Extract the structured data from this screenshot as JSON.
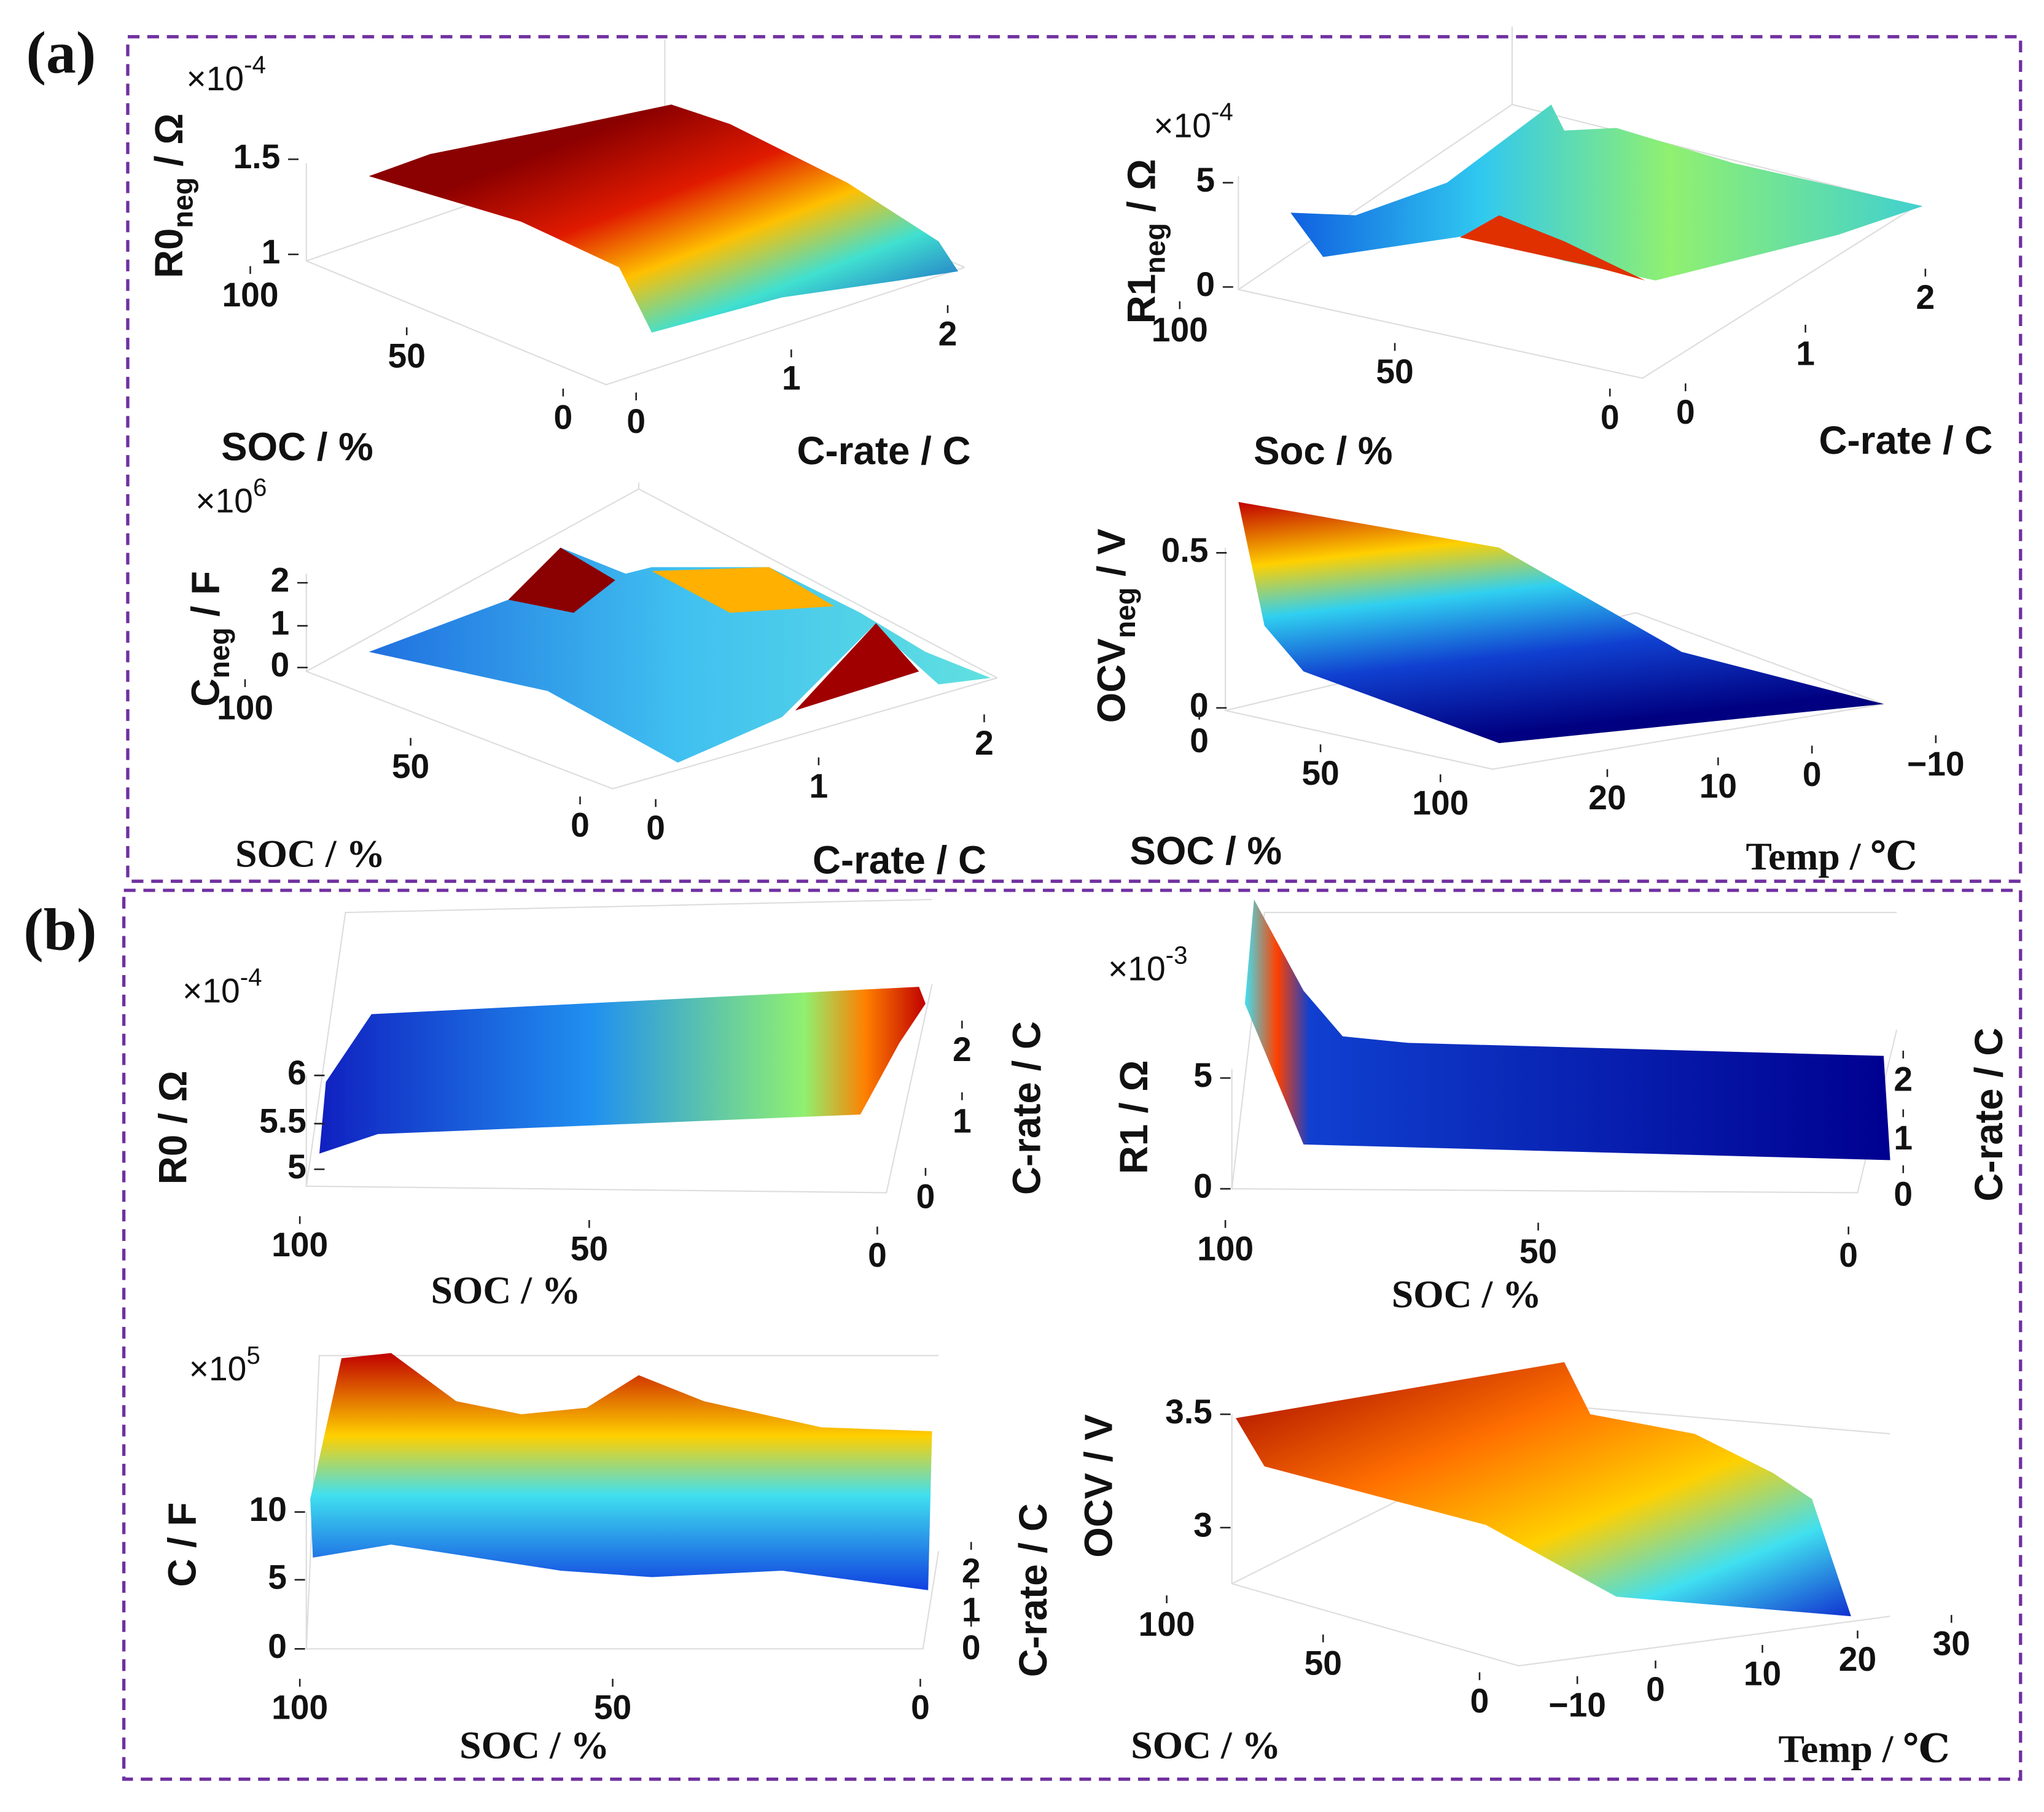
{
  "figure_labels": [
    "(a)",
    "(b)"
  ],
  "chart_data": [
    {
      "type": "surface",
      "multiplier": {
        "base": "×10",
        "exp": "-4"
      },
      "zlabel": {
        "main": "R0",
        "sub": "neg",
        "unit": " / Ω"
      },
      "xlabel": "SOC / %",
      "ylabel": "C-rate / C",
      "zticks": [
        1.5,
        1
      ],
      "xticks": [
        100,
        50,
        0
      ],
      "yticks": [
        0,
        1,
        2
      ]
    },
    {
      "type": "surface",
      "multiplier": {
        "base": "×10",
        "exp": "-4"
      },
      "zlabel": {
        "main": "R1",
        "sub": "neg",
        "unit": " / Ω"
      },
      "xlabel": "Soc / %",
      "ylabel": "C-rate / C",
      "zticks": [
        5,
        0
      ],
      "xticks": [
        100,
        50,
        0
      ],
      "yticks": [
        0,
        1,
        2
      ]
    },
    {
      "type": "surface",
      "multiplier": {
        "base": "×10",
        "exp": "6"
      },
      "zlabel": {
        "main": "C",
        "sub": "neg",
        "unit": " / F"
      },
      "xlabel": "SOC / %",
      "ylabel": "C-rate / C",
      "zticks": [
        2,
        1,
        0
      ],
      "xticks": [
        100,
        50,
        0
      ],
      "yticks": [
        0,
        1,
        2
      ]
    },
    {
      "type": "surface",
      "zlabel": {
        "main": "OCV",
        "sub": "neg",
        "unit": " / V"
      },
      "xlabel": "SOC / %",
      "ylabel": "Temp / ℃",
      "zticks": [
        0.5,
        0
      ],
      "xticks": [
        0,
        50,
        100
      ],
      "yticks": [
        20,
        10,
        0,
        {
          "value": -10,
          "label": "−10"
        }
      ]
    },
    {
      "type": "surface",
      "multiplier": {
        "base": "×10",
        "exp": "-4"
      },
      "zlabel": {
        "main": "R0",
        "unit": " / Ω"
      },
      "xlabel": "SOC / %",
      "ylabel": "C-rate / C",
      "zticks": [
        6,
        5.5,
        5
      ],
      "xticks": [
        100,
        50,
        0
      ],
      "yticks": [
        2,
        1,
        0
      ]
    },
    {
      "type": "surface",
      "multiplier": {
        "base": "×10",
        "exp": "-3"
      },
      "zlabel": {
        "main": "R1",
        "unit": " / Ω"
      },
      "xlabel": "SOC / %",
      "ylabel": "C-rate / C",
      "zticks": [
        5,
        0
      ],
      "xticks": [
        100,
        50,
        0
      ],
      "yticks": [
        2,
        1,
        0
      ]
    },
    {
      "type": "surface",
      "multiplier": {
        "base": "×10",
        "exp": "5"
      },
      "zlabel": {
        "main": "C",
        "unit": " / F"
      },
      "xlabel": "SOC / %",
      "ylabel": "C-rate / C",
      "zticks": [
        10,
        5,
        0
      ],
      "xticks": [
        100,
        50,
        0
      ],
      "yticks": [
        2,
        1,
        0
      ]
    },
    {
      "type": "surface",
      "zlabel": {
        "main": "OCV",
        "unit": " / V"
      },
      "xlabel": "SOC / %",
      "ylabel": "Temp / ℃",
      "zticks": [
        3.5,
        3
      ],
      "xticks": [
        100,
        50,
        0
      ],
      "yticks": [
        {
          "value": -10,
          "label": "−10"
        },
        0,
        10,
        20,
        30
      ]
    }
  ]
}
